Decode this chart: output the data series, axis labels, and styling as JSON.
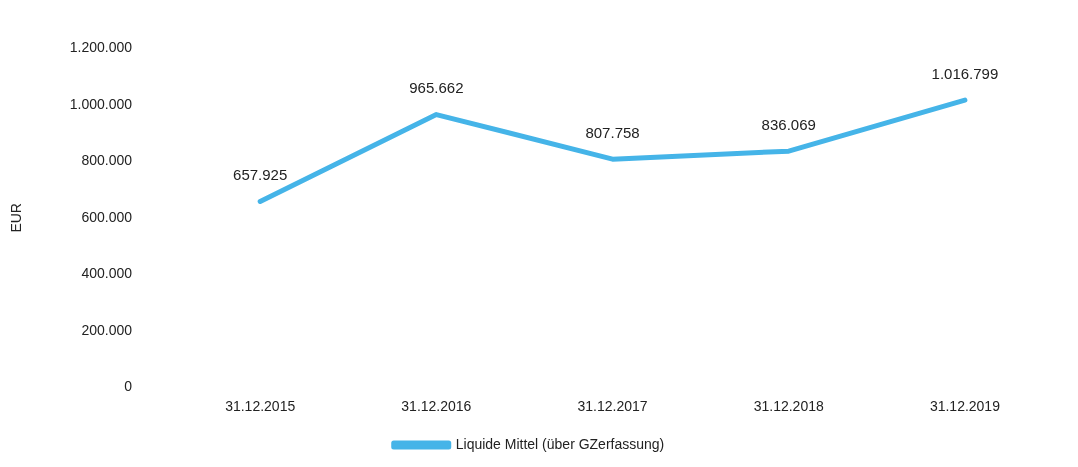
{
  "chart_data": {
    "type": "line",
    "ylabel": "EUR",
    "categories": [
      "31.12.2015",
      "31.12.2016",
      "31.12.2017",
      "31.12.2018",
      "31.12.2019"
    ],
    "series": [
      {
        "name": "Liquide Mittel (über GZerfassung)",
        "color": "#45b4e8",
        "values": [
          657925,
          965662,
          807758,
          836069,
          1016799
        ]
      }
    ],
    "value_labels": [
      "657.925",
      "965.662",
      "807.758",
      "836.069",
      "1.016.799"
    ],
    "ylim": [
      0,
      1200000
    ],
    "yticks": [
      0,
      {
        "value": 200000,
        "label": "200.000"
      },
      {
        "value": 400000,
        "label": "400.000"
      },
      {
        "value": 600000,
        "label": "600.000"
      },
      {
        "value": 800000,
        "label": "800.000"
      },
      {
        "value": 1000000,
        "label": "1.000.000"
      },
      {
        "value": 1200000,
        "label": "1.200.000"
      }
    ],
    "grid": false,
    "legend": "bottom",
    "marker": "none",
    "line_style": "solid"
  }
}
